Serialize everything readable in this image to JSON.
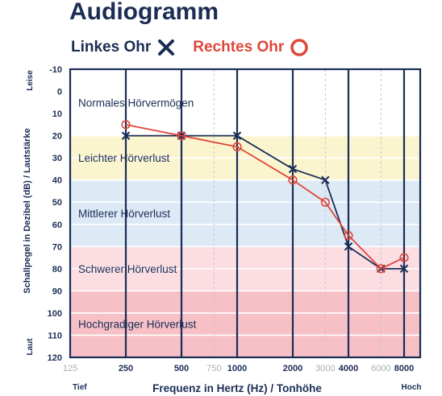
{
  "title": "Audiogramm",
  "legend": {
    "left": {
      "label": "Linkes Ohr",
      "marker": "x-icon",
      "color": "#1b2d55"
    },
    "right": {
      "label": "Rechtes Ohr",
      "marker": "circle-icon",
      "color": "#e0463a"
    }
  },
  "chart_data": {
    "type": "line",
    "title": "Audiogramm",
    "xlabel": "Frequenz in Hertz (Hz) / Tonhöhe",
    "ylabel": "Schallpegel in Dezibel (dB) / Lautstärke",
    "x_scale": "log2",
    "y_inverted": true,
    "ylim": [
      -10,
      120
    ],
    "y_ticks": [
      "-10",
      "0",
      "10",
      "20",
      "30",
      "40",
      "50",
      "60",
      "70",
      "80",
      "90",
      "100",
      "110",
      "120"
    ],
    "x_ticks": [
      {
        "value": 125,
        "label": "125",
        "major": false
      },
      {
        "value": 250,
        "label": "250",
        "major": true
      },
      {
        "value": 500,
        "label": "500",
        "major": true
      },
      {
        "value": 750,
        "label": "750",
        "major": false
      },
      {
        "value": 1000,
        "label": "1000",
        "major": true
      },
      {
        "value": 2000,
        "label": "2000",
        "major": true
      },
      {
        "value": 3000,
        "label": "3000",
        "major": false
      },
      {
        "value": 4000,
        "label": "4000",
        "major": true
      },
      {
        "value": 6000,
        "label": "6000",
        "major": false
      },
      {
        "value": 8000,
        "label": "8000",
        "major": true
      }
    ],
    "y_end_labels": {
      "top": "Leise",
      "bottom": "Laut"
    },
    "x_end_labels": {
      "left": "Tief",
      "right": "Hoch"
    },
    "zones": [
      {
        "label": "Normales Hörvermögen",
        "from": -10,
        "to": 20,
        "color": "#ffffff"
      },
      {
        "label": "Leichter Hörverlust",
        "from": 20,
        "to": 40,
        "color": "#fbf5cf"
      },
      {
        "label": "Mittlerer Hörverlust",
        "from": 40,
        "to": 70,
        "color": "#ddeaf6"
      },
      {
        "label": "Schwerer Hörverlust",
        "from": 70,
        "to": 90,
        "color": "#fbdde2"
      },
      {
        "label": "Hochgradiger Hörverlust",
        "from": 90,
        "to": 120,
        "color": "#f6c0c6"
      }
    ],
    "series": [
      {
        "name": "Linkes Ohr",
        "marker": "x",
        "color": "#1b2d55",
        "x": [
          250,
          500,
          1000,
          2000,
          3000,
          4000,
          6000,
          8000
        ],
        "y": [
          20,
          20,
          20,
          35,
          40,
          70,
          80,
          80
        ]
      },
      {
        "name": "Rechtes Ohr",
        "marker": "o",
        "color": "#e0463a",
        "x": [
          250,
          500,
          1000,
          2000,
          3000,
          4000,
          6000,
          8000
        ],
        "y": [
          15,
          20,
          25,
          40,
          50,
          65,
          80,
          75
        ]
      }
    ]
  }
}
